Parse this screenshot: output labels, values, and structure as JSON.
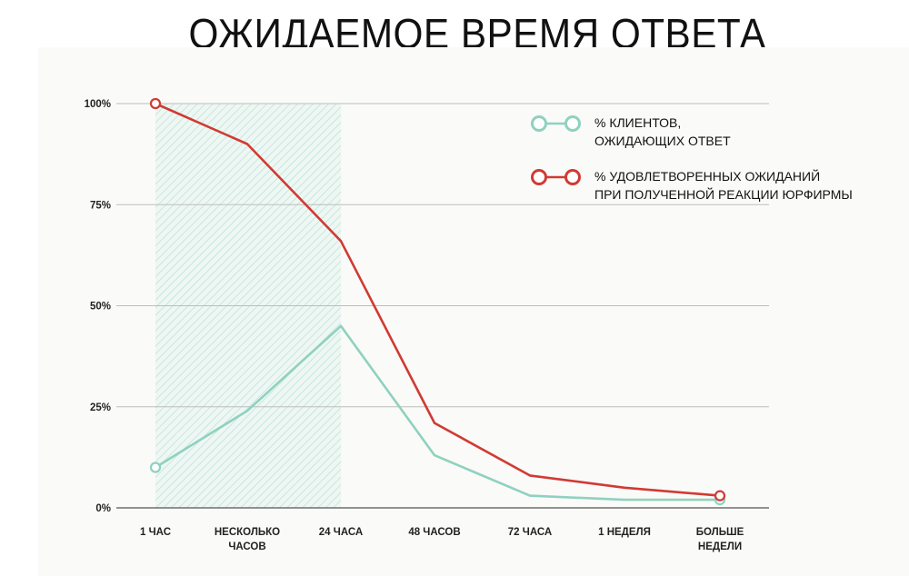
{
  "chart_data": {
    "type": "line",
    "title": "ОЖИДАЕМОЕ ВРЕМЯ ОТВЕТА",
    "categories": [
      [
        "1 ЧАС"
      ],
      [
        "НЕСКОЛЬКО",
        "ЧАСОВ"
      ],
      [
        "24 ЧАСА"
      ],
      [
        "48 ЧАСОВ"
      ],
      [
        "72 ЧАСА"
      ],
      [
        "1 НЕДЕЛЯ"
      ],
      [
        "БОЛЬШЕ",
        "НЕДЕЛИ"
      ]
    ],
    "yticks": [
      "0%",
      "25%",
      "50%",
      "75%",
      "100%"
    ],
    "ylim": [
      0,
      100
    ],
    "grid": true,
    "legend_position": "top-right",
    "highlight_range": [
      "1 ЧАС",
      "24 ЧАСА"
    ],
    "series": [
      {
        "name": "% КЛИЕНТОВ, ОЖИДАЮЩИХ ОТВЕТ",
        "legend_lines": [
          "% КЛИЕНТОВ,",
          "ОЖИДАЮЩИХ ОТВЕТ"
        ],
        "color": "#8fd1c0",
        "values": [
          10,
          24,
          45,
          13,
          3,
          2,
          2
        ]
      },
      {
        "name": "% УДОВЛЕТВОРЕННЫХ ОЖИДАНИЙ ПРИ ПОЛУЧЕННОЙ РЕАКЦИИ ЮРФИРМЫ",
        "legend_lines": [
          "% УДОВЛЕТВОРЕННЫХ ОЖИДАНИЙ",
          "ПРИ ПОЛУЧЕННОЙ РЕАКЦИИ ЮРФИРМЫ"
        ],
        "color": "#d13a33",
        "values": [
          100,
          90,
          66,
          21,
          8,
          5,
          3
        ]
      }
    ]
  }
}
